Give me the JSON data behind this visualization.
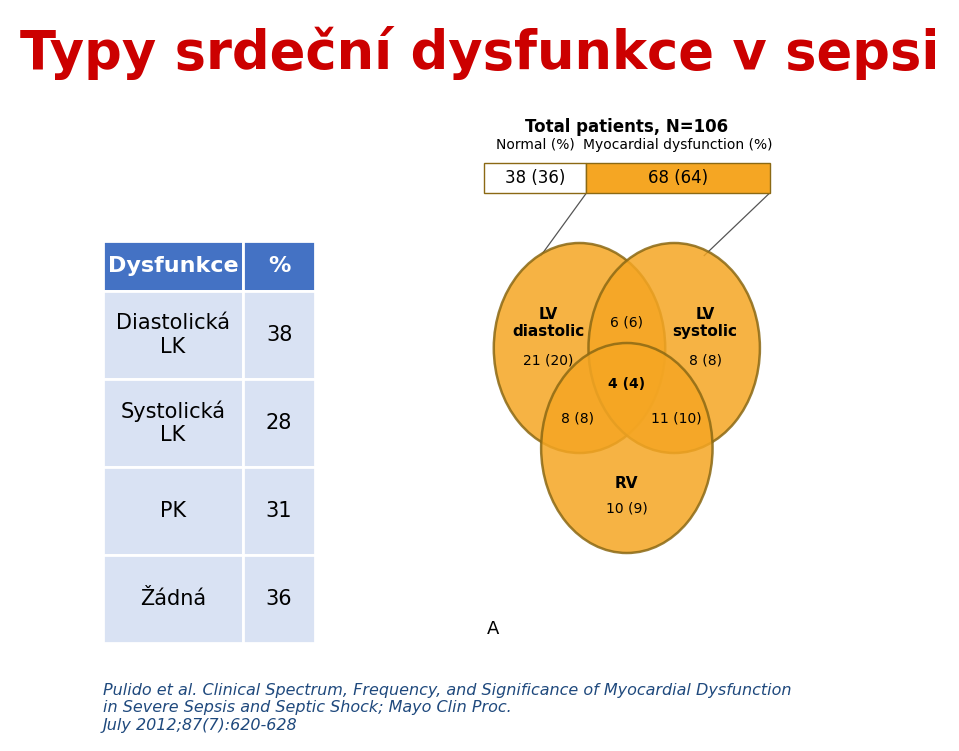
{
  "title": "Typy srdeční dysfunkce v sepsi",
  "title_color": "#CC0000",
  "bg_color": "#FFFFFF",
  "letter_a": "A",
  "table": {
    "headers": [
      "Dysfunkce",
      "%"
    ],
    "rows": [
      [
        "Diastolická\nLK",
        "38"
      ],
      [
        "Systolická\nLK",
        "28"
      ],
      [
        "PK",
        "31"
      ],
      [
        "Žádná",
        "36"
      ]
    ],
    "header_bg": "#4472C4",
    "header_text": "#FFFFFF",
    "row_bg": "#D9E2F3",
    "border_color": "#FFFFFF"
  },
  "venn": {
    "circle_color": "#F5A623",
    "circle_alpha": 0.85,
    "circle_edge": "#8B6914",
    "bar_normal_color": "#FFFFFF",
    "bar_dysfunc_color": "#F5A623",
    "bar_border": "#8B6914",
    "total_label": "Total patients, N=106",
    "normal_label": "Normal (%)",
    "dysfunction_label": "Myocardial dysfunction (%)",
    "normal_val": "38 (36)",
    "dysfunc_val": "68 (64)",
    "lv_diastolic_label": "LV\ndiastolic",
    "lv_diastolic_val": "21 (20)",
    "lv_systolic_label": "LV\nsystolic",
    "lv_systolic_val": "8 (8)",
    "rv_label": "RV",
    "rv_val": "10 (9)",
    "ld_ls_val": "6 (6)",
    "ld_rv_val": "8 (8)",
    "ls_rv_val": "11 (10)",
    "center_val": "4 (4)"
  },
  "footer": "Pulido et al. Clinical Spectrum, Frequency, and Significance of Myocardial Dysfunction\nin Severe Sepsis and Septic Shock; Mayo Clin Proc.\nJuly 2012;87(7):620-628",
  "footer_color": "#1F497D"
}
